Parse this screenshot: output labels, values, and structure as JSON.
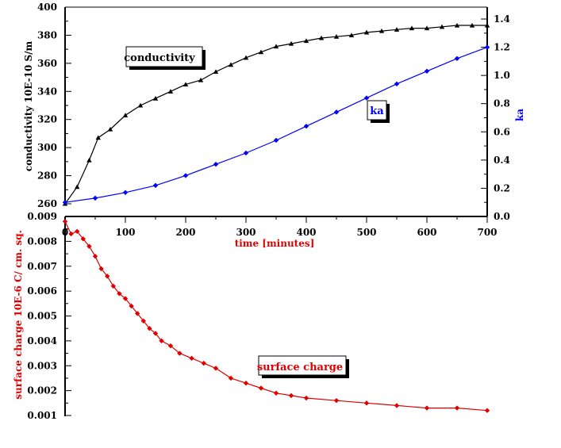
{
  "chart_data": [
    {
      "type": "line",
      "name": "top-panel",
      "xlabel": "time [minutes]",
      "x_ticks": [
        "0",
        "100",
        "200",
        "300",
        "400",
        "500",
        "600",
        "700"
      ],
      "xlim": [
        0,
        700
      ],
      "left_axis": {
        "label": "conductivity 10E-10 S/m",
        "ylim": [
          260,
          400
        ],
        "ticks": [
          "260",
          "280",
          "300",
          "320",
          "340",
          "360",
          "380",
          "400"
        ]
      },
      "right_axis": {
        "label": "ka",
        "ylim": [
          0,
          1.4
        ],
        "ticks": [
          "0.0",
          "0.2",
          "0.4",
          "0.6",
          "0.8",
          "1.0",
          "1.2",
          "1.4"
        ]
      },
      "series": [
        {
          "name": "conductivity",
          "axis": "left",
          "color": "#000000",
          "marker": "triangle",
          "x": [
            0,
            20,
            40,
            55,
            75,
            100,
            125,
            150,
            175,
            200,
            225,
            250,
            275,
            300,
            325,
            350,
            375,
            400,
            425,
            450,
            475,
            500,
            525,
            550,
            575,
            600,
            625,
            650,
            675,
            700
          ],
          "y": [
            260,
            272,
            291,
            307,
            313,
            323,
            330,
            335,
            340,
            345,
            348,
            354,
            359,
            364,
            368,
            372,
            374,
            376,
            378,
            379,
            380,
            382,
            383,
            384,
            385,
            385,
            386,
            387,
            387,
            387
          ]
        },
        {
          "name": "ka",
          "axis": "right",
          "color": "#0000ff",
          "marker": "diamond",
          "x": [
            0,
            50,
            100,
            150,
            200,
            250,
            300,
            350,
            400,
            450,
            500,
            550,
            600,
            650,
            700
          ],
          "y": [
            0.1,
            0.13,
            0.17,
            0.22,
            0.29,
            0.37,
            0.45,
            0.54,
            0.64,
            0.74,
            0.84,
            0.94,
            1.03,
            1.12,
            1.2
          ]
        }
      ],
      "annotations": [
        {
          "text": "conductivity",
          "series": "conductivity"
        },
        {
          "text": "ka",
          "series": "ka"
        }
      ]
    },
    {
      "type": "line",
      "name": "bottom-panel",
      "ylabel": "surface charge 10E-6 C/ cm. sq.",
      "ylim": [
        0.001,
        0.009
      ],
      "xlim": [
        0,
        700
      ],
      "y_ticks": [
        "0.001",
        "0.002",
        "0.003",
        "0.004",
        "0.005",
        "0.006",
        "0.007",
        "0.008",
        "0.009"
      ],
      "series": [
        {
          "name": "surface charge",
          "color": "#e00000",
          "marker": "diamond",
          "x": [
            0,
            10,
            20,
            30,
            40,
            50,
            60,
            70,
            80,
            90,
            100,
            110,
            120,
            130,
            140,
            150,
            160,
            175,
            190,
            210,
            230,
            250,
            275,
            300,
            325,
            350,
            375,
            400,
            450,
            500,
            550,
            600,
            650,
            700
          ],
          "y": [
            0.0088,
            0.0083,
            0.0084,
            0.0081,
            0.0078,
            0.0074,
            0.0069,
            0.0066,
            0.0062,
            0.0059,
            0.0057,
            0.0054,
            0.0051,
            0.0048,
            0.0045,
            0.0043,
            0.004,
            0.0038,
            0.0035,
            0.0033,
            0.0031,
            0.0029,
            0.0025,
            0.0023,
            0.0021,
            0.0019,
            0.0018,
            0.0017,
            0.0016,
            0.0015,
            0.0014,
            0.0013,
            0.0013,
            0.0012
          ]
        }
      ],
      "annotations": [
        {
          "text": "surface charge",
          "series": "surface charge"
        }
      ]
    }
  ]
}
